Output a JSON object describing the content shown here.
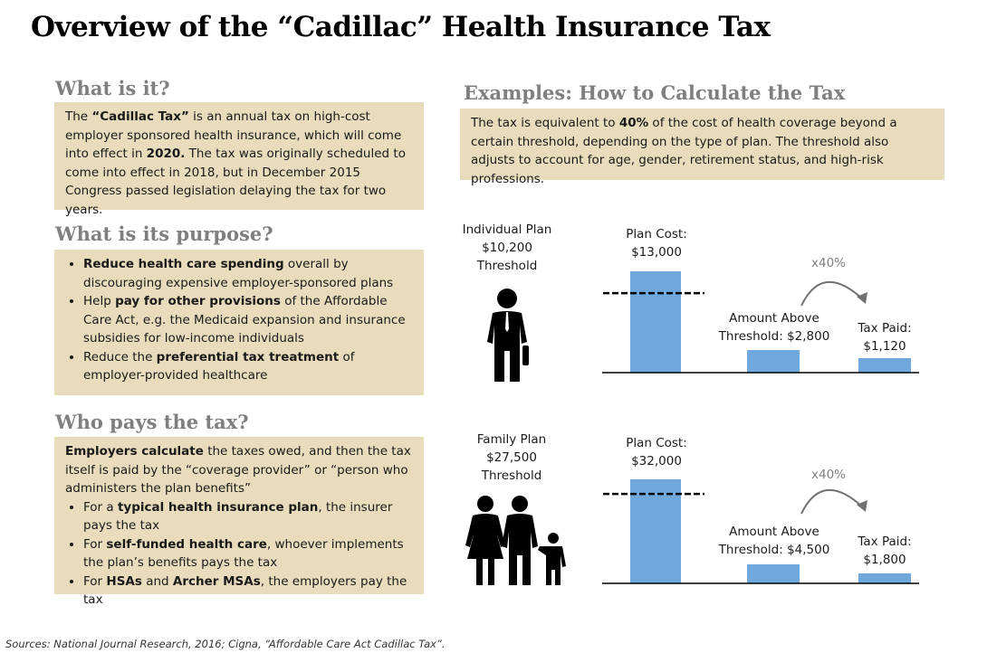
{
  "title": "Overview of the “Cadillac” Health Insurance Tax",
  "what": {
    "heading": "What is it?",
    "p1": "The ",
    "b1": "“Cadillac Tax”",
    "p2": " is an annual tax on high-cost employer sponsored health insurance, which will come into effect in ",
    "b2": "2020.",
    "p3": " The tax was originally scheduled to come into effect in 2018, but in December 2015 Congress passed legislation delaying the tax for two years."
  },
  "purpose": {
    "heading": "What is its purpose?",
    "items": [
      {
        "b": "Reduce health care spending",
        "t": " overall by discouraging expensive employer-sponsored plans",
        "pre": ""
      },
      {
        "pre": "Help ",
        "b": "pay for other provisions",
        "t": " of the Affordable Care Act, e.g. the Medicaid expansion and insurance subsidies for low-income individuals"
      },
      {
        "pre": "Reduce the ",
        "b": "preferential tax treatment",
        "t": " of employer-provided healthcare"
      }
    ]
  },
  "who": {
    "heading": "Who pays the tax?",
    "b0": "Employers calculate",
    "p0": " the taxes owed, and then the tax itself is paid by the “coverage provider” or “person who administers the plan benefits”",
    "items": [
      {
        "pre": "For a ",
        "b": "typical health insurance plan",
        "t": ", the insurer pays the tax"
      },
      {
        "pre": "For ",
        "b": "self-funded health care",
        "t": ", whoever implements the plan’s benefits pays the tax"
      },
      {
        "pre": "For ",
        "b": "HSAs",
        "t": " and ",
        "b2": "Archer MSAs",
        "t2": ", the employers pay the tax"
      }
    ]
  },
  "examples": {
    "heading": "Examples: How to Calculate the Tax",
    "p1": "The tax is equivalent to ",
    "b1": "40%",
    "p2": " of the cost of health coverage beyond a certain threshold, depending on the type of plan. The threshold also adjusts to account for age, gender, retirement status, and high-risk professions."
  },
  "colors": {
    "box": "#e8dcbd",
    "bar": "#6fa8dc",
    "heading": "#7f7f7f"
  },
  "chart_data": [
    {
      "type": "bar",
      "plan": "Individual Plan",
      "threshold_label": "$10,200",
      "threshold_word": "Threshold",
      "threshold": 10200,
      "categories": [
        "Plan Cost:",
        "Amount Above Threshold:",
        "Tax Paid:"
      ],
      "values": [
        13000,
        2800,
        1120
      ],
      "value_labels": [
        "$13,000",
        "$2,800",
        "$1,120"
      ],
      "multiplier": "x40%",
      "icon": "businessman-icon"
    },
    {
      "type": "bar",
      "plan": "Family Plan",
      "threshold_label": "$27,500",
      "threshold_word": "Threshold",
      "threshold": 27500,
      "categories": [
        "Plan Cost:",
        "Amount Above Threshold:",
        "Tax Paid:"
      ],
      "values": [
        32000,
        4500,
        1800
      ],
      "value_labels": [
        "$32,000",
        "$4,500",
        "$1,800"
      ],
      "multiplier": "x40%",
      "icon": "family-icon"
    }
  ],
  "sources": "Sources: National Journal Research, 2016; Cigna, “Affordable Care Act Cadillac Tax”."
}
